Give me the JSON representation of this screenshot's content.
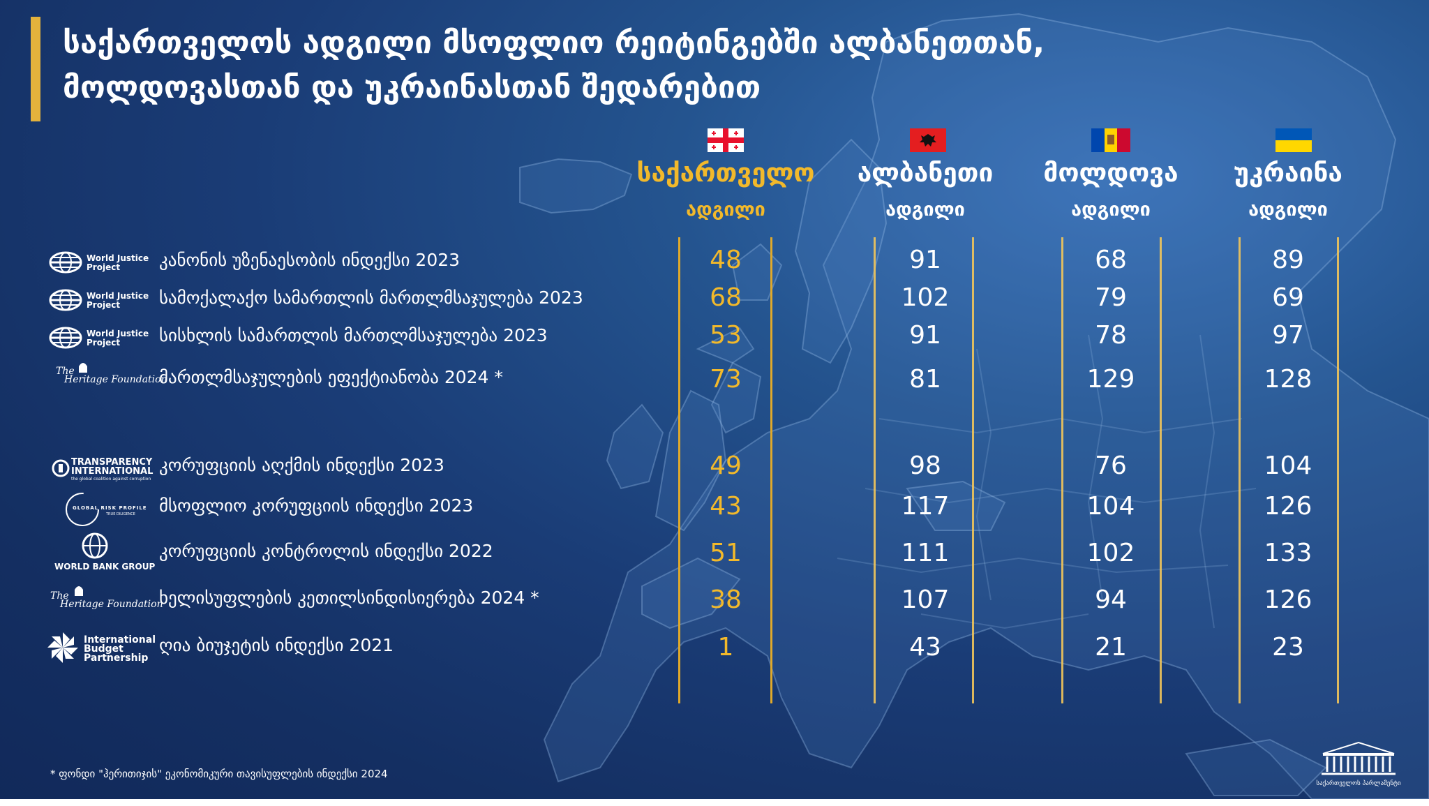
{
  "title": {
    "line1": "საქართველოს ადგილი მსოფლიო რეიტინგებში ალბანეთთან,",
    "line2": "მოლდოვასთან და უკრაინასთან შედარებით"
  },
  "colors": {
    "accent_gold": "#f2b92b",
    "background": "#1a3c76"
  },
  "columns": [
    {
      "name": "საქართველო",
      "sub": "ადგილი",
      "flag": "georgia-flag-icon"
    },
    {
      "name": "ალბანეთი",
      "sub": "ადგილი",
      "flag": "albania-flag-icon"
    },
    {
      "name": "მოლდოვა",
      "sub": "ადგილი",
      "flag": "moldova-flag-icon"
    },
    {
      "name": "უკრაინა",
      "sub": "ადგილი",
      "flag": "ukraine-flag-icon"
    }
  ],
  "logos": {
    "wjp_line1": "World Justice",
    "wjp_line2": "Project",
    "heritage_the": "The",
    "heritage_name": "Heritage Foundation",
    "ti_line1": "TRANSPARENCY",
    "ti_line2": "INTERNATIONAL",
    "ti_tag": "the global coalition against corruption",
    "grp_line1": "GLOBAL RISK PROFILE",
    "grp_line2": "TRUE DILIGENCE",
    "wb": "WORLD BANK GROUP",
    "ibp_line1": "International",
    "ibp_line2": "Budget",
    "ibp_line3": "Partnership"
  },
  "chart_data": {
    "type": "table",
    "title": "საქართველოს ადგილი მსოფლიო რეიტინგებში ალბანეთთან, მოლდოვასთან და უკრაინასთან შედარებით",
    "columns": [
      "საქართველო",
      "ალბანეთი",
      "მოლდოვა",
      "უკრაინა"
    ],
    "rows": [
      {
        "label": "კანონის უზენაესობის ინდექსი 2023",
        "source": "World Justice Project",
        "values": [
          "48",
          "91",
          "68",
          "89"
        ]
      },
      {
        "label": "სამოქალაქო სამართლის მართლმსაჯულება 2023",
        "source": "World Justice Project",
        "values": [
          "68",
          "102",
          "79",
          "69"
        ]
      },
      {
        "label": "სისხლის სამართლის მართლმსაჯულება 2023",
        "source": "World Justice Project",
        "values": [
          "53",
          "91",
          "78",
          "97"
        ]
      },
      {
        "label": "მართლმსაჯულების ეფექტიანობა 2024 *",
        "source": "The Heritage Foundation",
        "values": [
          "73",
          "81",
          "129",
          "128"
        ]
      },
      {
        "label": "კორუფციის აღქმის ინდექსი 2023",
        "source": "Transparency International",
        "values": [
          "49",
          "98",
          "76",
          "104"
        ]
      },
      {
        "label": "მსოფლიო კორუფციის ინდექსი 2023",
        "source": "Global Risk Profile",
        "values": [
          "43",
          "117",
          "104",
          "126"
        ]
      },
      {
        "label": "კორუფციის კონტროლის ინდექსი 2022",
        "source": "World Bank Group",
        "values": [
          "51",
          "111",
          "102",
          "133"
        ]
      },
      {
        "label": "ხელისუფლების კეთილსინდისიერება 2024 *",
        "source": "The Heritage Foundation",
        "values": [
          "38",
          "107",
          "94",
          "126"
        ]
      },
      {
        "label": "ღია ბიუჯეტის ინდექსი 2021",
        "source": "International Budget Partnership",
        "values": [
          "1",
          "43",
          "21",
          "23"
        ]
      }
    ]
  },
  "footnote": "* ფონდი \"ჰერითიჯის\" ეკონომიკური თავისუფლების ინდექსი 2024",
  "parliament_label": "საქართველოს პარლამენტი"
}
